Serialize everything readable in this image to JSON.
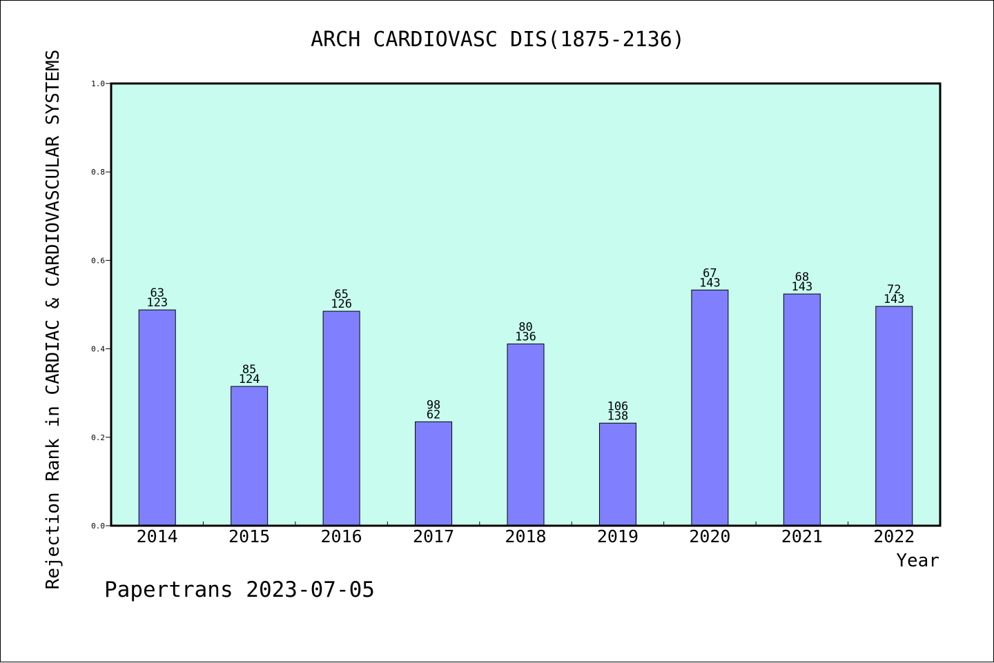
{
  "chart_data": {
    "type": "bar",
    "title": "ARCH CARDIOVASC DIS(1875-2136)",
    "xlabel": "Year",
    "ylabel": "Rejection Rank in CARDIAC & CARDIOVASCULAR SYSTEMS",
    "ylim": [
      0.0,
      1.0
    ],
    "yticks": [
      "0.0",
      "0.2",
      "0.4",
      "0.6",
      "0.8",
      "1.0"
    ],
    "categories": [
      "2014",
      "2015",
      "2016",
      "2017",
      "2018",
      "2019",
      "2020",
      "2021",
      "2022"
    ],
    "values": [
      0.488,
      0.315,
      0.485,
      0.235,
      0.411,
      0.232,
      0.533,
      0.524,
      0.496
    ],
    "bar_labels": [
      [
        "63",
        "123"
      ],
      [
        "85",
        "124"
      ],
      [
        "65",
        "126"
      ],
      [
        "98",
        "62"
      ],
      [
        "80",
        "136"
      ],
      [
        "106",
        "138"
      ],
      [
        "67",
        "143"
      ],
      [
        "68",
        "143"
      ],
      [
        "72",
        "143"
      ]
    ],
    "grid": false,
    "colors": {
      "plot_background": "#c8fcee",
      "bar_fill": "#8080ff",
      "bar_edge": "#000000"
    }
  },
  "footer": "Papertrans 2023-07-05"
}
